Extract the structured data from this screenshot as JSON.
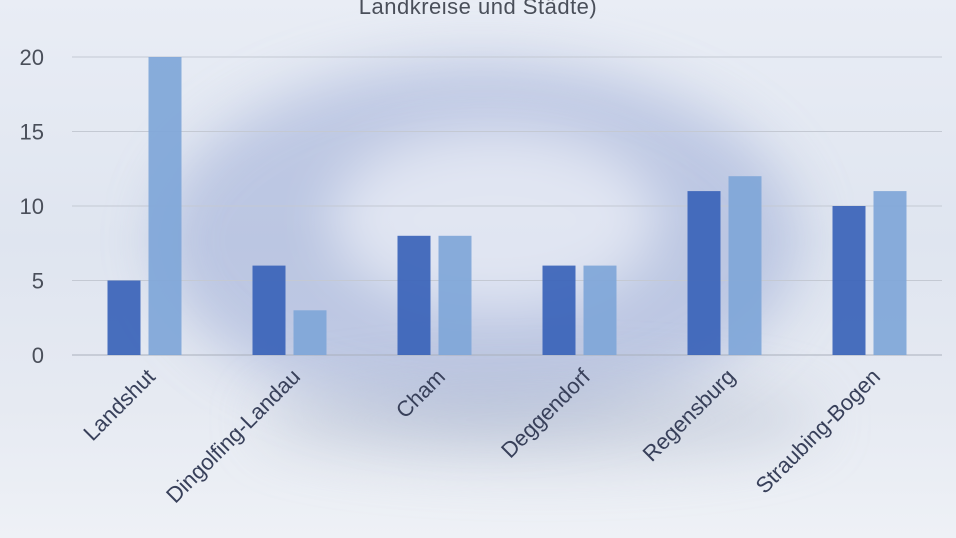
{
  "chart_data": {
    "type": "bar",
    "title": "Landkreise und Städte)",
    "categories": [
      "Landshut",
      "Dingolfing-Landau",
      "Cham",
      "Deggendorf",
      "Regensburg",
      "Straubing-Bogen"
    ],
    "series": [
      {
        "values": [
          5,
          6,
          8,
          6,
          11,
          10
        ],
        "color": "#3a63b8"
      },
      {
        "values": [
          20,
          3,
          8,
          6,
          12,
          11
        ],
        "color": "#7fa6d8"
      }
    ],
    "yticks": [
      0,
      5,
      10,
      15,
      20
    ],
    "ylim": [
      0,
      20
    ],
    "grid": true,
    "legend": "none"
  }
}
